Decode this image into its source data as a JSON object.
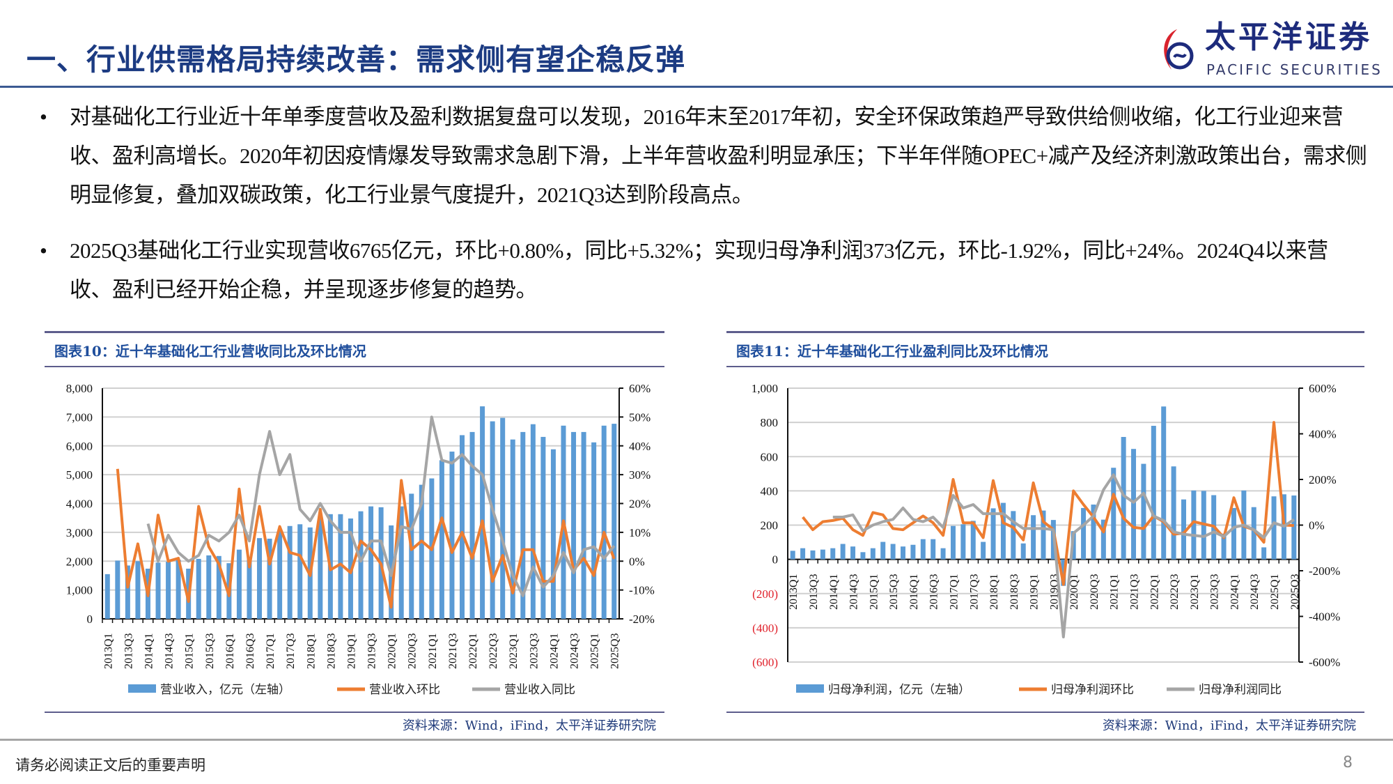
{
  "header": {
    "title": "一、行业供需格局持续改善：需求侧有望企稳反弹",
    "logo_cn": "太平洋证券",
    "logo_en": "PACIFIC SECURITIES"
  },
  "body": {
    "bullets": [
      {
        "symbol": "•",
        "text": "对基础化工行业近十年单季度营收及盈利数据复盘可以发现，2016年末至2017年初，安全环保政策趋严导致供给侧收缩，化工行业迎来营收、盈利高增长。2020年初因疫情爆发导致需求急剧下滑，上半年营收盈利明显承压；下半年伴随OPEC+减产及经济刺激政策出台，需求侧明显修复，叠加双碳政策，化工行业景气度提升，2021Q3达到阶段高点。"
      },
      {
        "symbol": "•",
        "text": "2025Q3基础化工行业实现营收6765亿元，环比+0.80%，同比+5.32%；实现归母净利润373亿元，环比-1.92%，同比+24%。2024Q4以来营收、盈利已经开始企稳，并呈现逐步修复的趋势。"
      }
    ]
  },
  "colors": {
    "bar": "#5b9bd5",
    "qoq": "#ed7d31",
    "yoy": "#a5a5a5",
    "grid": "#d0d0d0",
    "negative_tick": "#e0202a",
    "title_blue": "#1c3b82"
  },
  "chart_data": [
    {
      "type": "bar+line",
      "title": "图表10：近十年基础化工行业营收同比及环比情况",
      "source": "资料来源：Wind，iFind，太平洋证券研究院",
      "categories": [
        "2013Q1",
        "2013Q2",
        "2013Q3",
        "2013Q4",
        "2014Q1",
        "2014Q2",
        "2014Q3",
        "2014Q4",
        "2015Q1",
        "2015Q2",
        "2015Q3",
        "2015Q4",
        "2016Q1",
        "2016Q2",
        "2016Q3",
        "2016Q4",
        "2017Q1",
        "2017Q2",
        "2017Q3",
        "2017Q4",
        "2018Q1",
        "2018Q2",
        "2018Q3",
        "2018Q4",
        "2019Q1",
        "2019Q2",
        "2019Q3",
        "2019Q4",
        "2020Q1",
        "2020Q2",
        "2020Q3",
        "2020Q4",
        "2021Q1",
        "2021Q2",
        "2021Q3",
        "2021Q4",
        "2022Q1",
        "2022Q2",
        "2022Q3",
        "2022Q4",
        "2023Q1",
        "2023Q2",
        "2023Q3",
        "2023Q4",
        "2024Q1",
        "2024Q2",
        "2024Q3",
        "2024Q4",
        "2025Q1",
        "2025Q2",
        "2025Q3"
      ],
      "left_axis": {
        "range": [
          0,
          8000
        ],
        "ticks": [
          "8,000",
          "7,000",
          "6,000",
          "5,000",
          "4,000",
          "3,000",
          "2,000",
          "1,000",
          "0"
        ]
      },
      "right_axis": {
        "range": [
          -20,
          60
        ],
        "unit": "%",
        "ticks": [
          "60%",
          "50%",
          "40%",
          "30%",
          "20%",
          "10%",
          "0%",
          "-10%",
          "-20%"
        ]
      },
      "grid": true,
      "legend_position": "bottom",
      "series": [
        {
          "name": "营业收入，亿元（左轴）",
          "type": "bar",
          "axis": "left",
          "values": [
            1550,
            2020,
            1850,
            2000,
            1740,
            1950,
            1980,
            2050,
            1740,
            2080,
            2200,
            2180,
            1930,
            2400,
            2150,
            2800,
            2780,
            3050,
            3220,
            3280,
            3170,
            3500,
            3630,
            3630,
            3480,
            3730,
            3900,
            3870,
            3240,
            3900,
            4340,
            4650,
            4870,
            5500,
            5800,
            6370,
            6480,
            7370,
            6850,
            6970,
            6220,
            6480,
            6750,
            6310,
            5880,
            6700,
            6480,
            6480,
            6120,
            6700,
            6765
          ]
        },
        {
          "name": "营业收入环比",
          "type": "line",
          "axis": "right",
          "values": [
            null,
            32,
            -9,
            6,
            -12,
            16,
            0,
            1,
            -14,
            19,
            5,
            -1,
            -12,
            25,
            -2,
            19,
            -1,
            12,
            3,
            2,
            -5,
            18,
            -3,
            -1,
            -4,
            7,
            4,
            -1,
            -16,
            28,
            4,
            7,
            4,
            15,
            3,
            10,
            1,
            14,
            -7,
            2,
            -11,
            4,
            4,
            -7,
            -7,
            14,
            -3,
            1,
            -5,
            10,
            0.8
          ]
        },
        {
          "name": "营业收入同比",
          "type": "line",
          "axis": "right",
          "values": [
            null,
            null,
            null,
            null,
            13,
            0,
            9,
            3,
            0,
            2,
            9,
            7,
            10,
            16,
            7,
            30,
            45,
            30,
            37,
            18,
            14,
            20,
            14,
            10,
            10,
            0,
            7,
            7,
            -5,
            12,
            11,
            20,
            50,
            35,
            34,
            37,
            33,
            30,
            18,
            7,
            -5,
            -12,
            -2,
            -9,
            -5,
            3,
            -4,
            4,
            5,
            1,
            5.32
          ]
        }
      ]
    },
    {
      "type": "bar+line",
      "title": "图表11：近十年基础化工行业盈利同比及环比情况",
      "source": "资料来源：Wind，iFind，太平洋证券研究院",
      "categories": [
        "2013Q1",
        "2013Q2",
        "2013Q3",
        "2013Q4",
        "2014Q1",
        "2014Q2",
        "2014Q3",
        "2014Q4",
        "2015Q1",
        "2015Q2",
        "2015Q3",
        "2015Q4",
        "2016Q1",
        "2016Q2",
        "2016Q3",
        "2016Q4",
        "2017Q1",
        "2017Q2",
        "2017Q3",
        "2017Q4",
        "2018Q1",
        "2018Q2",
        "2018Q3",
        "2018Q4",
        "2019Q1",
        "2019Q2",
        "2019Q3",
        "2019Q4",
        "2020Q1",
        "2020Q2",
        "2020Q3",
        "2020Q4",
        "2021Q1",
        "2021Q2",
        "2021Q3",
        "2021Q4",
        "2022Q1",
        "2022Q2",
        "2022Q3",
        "2022Q4",
        "2023Q1",
        "2023Q2",
        "2023Q3",
        "2023Q4",
        "2024Q1",
        "2024Q2",
        "2024Q3",
        "2024Q4",
        "2025Q1",
        "2025Q2",
        "2025Q3"
      ],
      "left_axis": {
        "range": [
          -600,
          1000
        ],
        "ticks": [
          "1,000",
          "800",
          "600",
          "400",
          "200",
          "0",
          "(200)",
          "(400)",
          "(600)"
        ]
      },
      "right_axis": {
        "range": [
          -600,
          600
        ],
        "unit": "%",
        "ticks": [
          "600%",
          "400%",
          "200%",
          "0%",
          "-200%",
          "-400%",
          "-600%"
        ]
      },
      "grid": true,
      "legend_position": "bottom",
      "series": [
        {
          "name": "归母净利润，亿元（左轴）",
          "type": "bar",
          "axis": "left",
          "values": [
            50,
            65,
            52,
            57,
            65,
            90,
            75,
            42,
            65,
            102,
            90,
            75,
            85,
            118,
            118,
            65,
            195,
            205,
            225,
            102,
            298,
            330,
            282,
            93,
            258,
            285,
            230,
            -155,
            165,
            300,
            320,
            232,
            535,
            715,
            645,
            558,
            780,
            893,
            543,
            350,
            402,
            400,
            375,
            150,
            300,
            402,
            305,
            70,
            368,
            380,
            373
          ]
        },
        {
          "name": "归母净利润环比",
          "type": "line",
          "axis": "right",
          "values": [
            null,
            35,
            -20,
            15,
            20,
            30,
            -20,
            -45,
            55,
            45,
            -15,
            -20,
            10,
            40,
            10,
            -45,
            200,
            10,
            10,
            -55,
            195,
            10,
            -10,
            -65,
            185,
            15,
            -20,
            -260,
            150,
            90,
            35,
            -30,
            135,
            30,
            -10,
            -15,
            40,
            15,
            -40,
            -35,
            15,
            5,
            -5,
            -55,
            120,
            -5,
            -20,
            -75,
            450,
            0,
            -1.92
          ]
        },
        {
          "name": "归母净利润同比",
          "type": "line",
          "axis": "right",
          "values": [
            null,
            null,
            null,
            null,
            35,
            35,
            45,
            -25,
            0,
            15,
            25,
            75,
            25,
            15,
            35,
            -10,
            130,
            75,
            90,
            50,
            50,
            50,
            15,
            -15,
            -15,
            -15,
            -20,
            -490,
            -35,
            0,
            40,
            155,
            220,
            130,
            100,
            140,
            40,
            20,
            -30,
            -40,
            -45,
            -50,
            -30,
            -50,
            -10,
            0,
            -20,
            -55,
            10,
            -5,
            24
          ]
        }
      ]
    }
  ],
  "footer": {
    "disclaimer": "请务必阅读正文后的重要声明",
    "page": "8"
  }
}
